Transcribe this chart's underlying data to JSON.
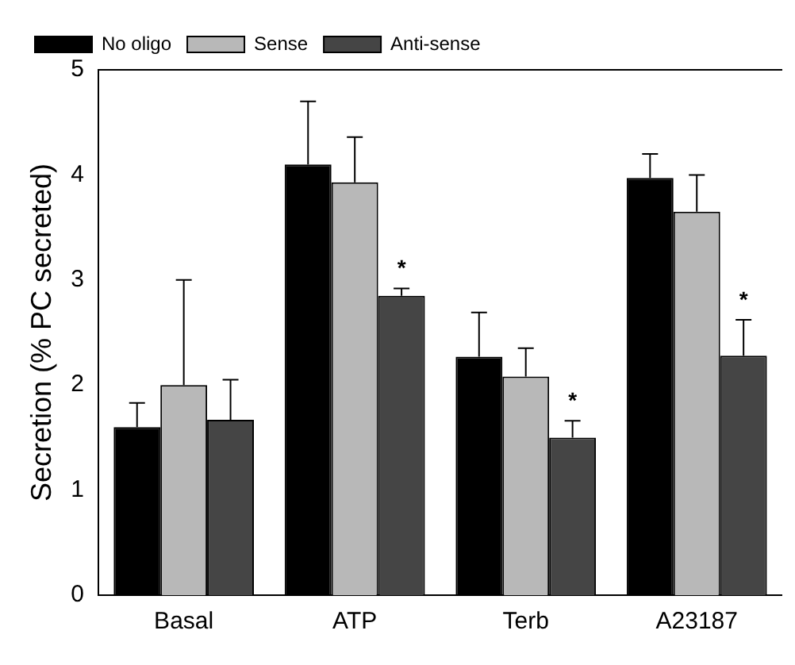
{
  "chart_data": {
    "type": "bar",
    "ylabel": "Secretion (% PC secreted)",
    "categories": [
      "Basal",
      "ATP",
      "Terb",
      "A23187"
    ],
    "series": [
      {
        "name": "No oligo",
        "color": "#000000",
        "values": [
          1.6,
          4.1,
          2.27,
          3.97
        ],
        "errors": [
          [
            1.6,
            1.83
          ],
          [
            4.1,
            4.7
          ],
          [
            2.27,
            2.69
          ],
          [
            3.97,
            4.2
          ]
        ]
      },
      {
        "name": "Sense",
        "color": "#b8b8b8",
        "values": [
          2.0,
          3.93,
          2.08,
          3.65
        ],
        "errors": [
          [
            2.0,
            3.0
          ],
          [
            3.93,
            4.36
          ],
          [
            2.08,
            2.35
          ],
          [
            3.65,
            4.0
          ]
        ]
      },
      {
        "name": "Anti-sense",
        "color": "#454545",
        "values": [
          1.67,
          2.85,
          1.5,
          2.28
        ],
        "errors": [
          [
            1.67,
            2.05
          ],
          [
            2.85,
            2.92
          ],
          [
            1.5,
            1.66
          ],
          [
            2.28,
            2.62
          ]
        ],
        "value_labels": [
          null,
          "*",
          "*",
          "*"
        ]
      }
    ],
    "ylim": [
      0,
      5
    ],
    "yticks": [
      0,
      1,
      2,
      3,
      4,
      5
    ],
    "grid": false,
    "legend": "top left"
  }
}
